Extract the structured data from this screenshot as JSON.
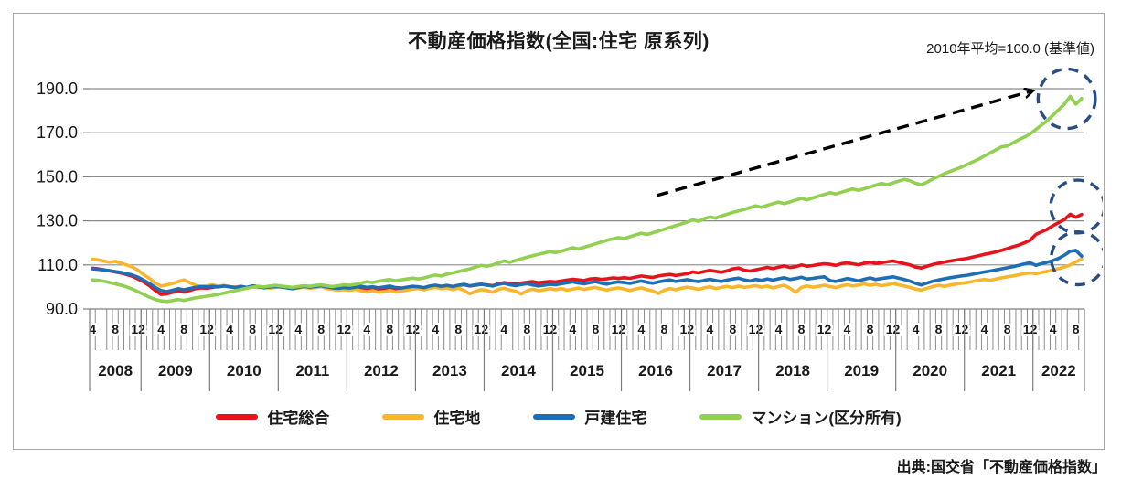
{
  "title": "不動産価格指数(全国:住宅 原系列)",
  "subtitle": "2010年平均=100.0 (基準値)",
  "source": "出典:国交省「不動産価格指数」",
  "colors": {
    "grid": "#8c8c8c",
    "axis": "#7f7f7f",
    "frame_border": "#a6a6a6",
    "annotation_navy": "#2a4d83",
    "arrow_black": "#000000",
    "text": "#1a1a1a"
  },
  "chart_data": {
    "type": "line",
    "title": "不動産価格指数(全国:住宅 原系列)",
    "subtitle": "2010年平均=100.0 (基準値)",
    "xlabel": "",
    "ylabel": "",
    "ylim": [
      90,
      190
    ],
    "yticks": [
      90,
      110,
      130,
      150,
      170,
      190
    ],
    "ytick_labels": [
      "90.0",
      "110.0",
      "130.0",
      "150.0",
      "170.0",
      "190.0"
    ],
    "grid": "horizontal",
    "legend_position": "bottom",
    "x_start": "2008-04",
    "x_end": "2022-09",
    "years": [
      {
        "label": "2008",
        "start_month": 4,
        "end_month": 12,
        "month_ticks": [
          4,
          8,
          12
        ]
      },
      {
        "label": "2009",
        "start_month": 1,
        "end_month": 12,
        "month_ticks": [
          4,
          8,
          12
        ]
      },
      {
        "label": "2010",
        "start_month": 1,
        "end_month": 12,
        "month_ticks": [
          4,
          8,
          12
        ]
      },
      {
        "label": "2011",
        "start_month": 1,
        "end_month": 12,
        "month_ticks": [
          4,
          8,
          12
        ]
      },
      {
        "label": "2012",
        "start_month": 1,
        "end_month": 12,
        "month_ticks": [
          4,
          8,
          12
        ]
      },
      {
        "label": "2013",
        "start_month": 1,
        "end_month": 12,
        "month_ticks": [
          4,
          8,
          12
        ]
      },
      {
        "label": "2014",
        "start_month": 1,
        "end_month": 12,
        "month_ticks": [
          4,
          8,
          12
        ]
      },
      {
        "label": "2015",
        "start_month": 1,
        "end_month": 12,
        "month_ticks": [
          4,
          8,
          12
        ]
      },
      {
        "label": "2016",
        "start_month": 1,
        "end_month": 12,
        "month_ticks": [
          4,
          8,
          12
        ]
      },
      {
        "label": "2017",
        "start_month": 1,
        "end_month": 12,
        "month_ticks": [
          4,
          8,
          12
        ]
      },
      {
        "label": "2018",
        "start_month": 1,
        "end_month": 12,
        "month_ticks": [
          4,
          8,
          12
        ]
      },
      {
        "label": "2019",
        "start_month": 1,
        "end_month": 12,
        "month_ticks": [
          4,
          8,
          12
        ]
      },
      {
        "label": "2020",
        "start_month": 1,
        "end_month": 12,
        "month_ticks": [
          4,
          8,
          12
        ]
      },
      {
        "label": "2021",
        "start_month": 1,
        "end_month": 12,
        "month_ticks": [
          4,
          8,
          12
        ]
      },
      {
        "label": "2022",
        "start_month": 1,
        "end_month": 9,
        "month_ticks": [
          4,
          8
        ]
      }
    ],
    "series": [
      {
        "name": "住宅総合",
        "color": "#e8121b",
        "values": [
          108.5,
          108.2,
          107.8,
          107.3,
          106.8,
          106.3,
          105.6,
          104.8,
          103.6,
          102.2,
          100.5,
          98.4,
          96.6,
          96.9,
          97.6,
          98.3,
          97.7,
          98.4,
          99.2,
          99.6,
          99.4,
          99.8,
          100.2,
          100.5,
          100.1,
          99.9,
          100.3,
          99.7,
          100.4,
          100.2,
          99.8,
          100.0,
          100.3,
          100.1,
          99.7,
          99.4,
          99.8,
          100.2,
          99.9,
          100.1,
          100.4,
          99.8,
          99.5,
          99.2,
          99.0,
          99.3,
          99.6,
          99.1,
          98.8,
          99.0,
          98.6,
          98.9,
          99.3,
          98.7,
          98.5,
          98.9,
          99.4,
          99.6,
          99.2,
          99.8,
          100.3,
          100.0,
          100.5,
          100.2,
          100.7,
          101.0,
          100.4,
          100.8,
          101.2,
          100.9,
          100.6,
          101.4,
          102.0,
          101.6,
          101.3,
          101.8,
          102.1,
          102.4,
          101.9,
          102.2,
          102.5,
          102.3,
          102.7,
          103.1,
          103.5,
          103.2,
          102.9,
          103.6,
          103.8,
          103.4,
          103.7,
          104.1,
          103.9,
          104.2,
          103.9,
          104.5,
          105.0,
          104.6,
          104.3,
          105.0,
          105.4,
          105.7,
          105.2,
          105.6,
          106.0,
          106.8,
          106.4,
          107.0,
          107.5,
          107.1,
          106.7,
          107.3,
          108.2,
          108.6,
          107.6,
          107.2,
          107.8,
          108.3,
          108.9,
          108.4,
          109.0,
          109.6,
          108.8,
          109.2,
          110.0,
          109.4,
          109.7,
          110.2,
          110.5,
          110.3,
          109.8,
          110.6,
          111.0,
          110.5,
          110.1,
          110.8,
          111.3,
          110.7,
          111.0,
          111.4,
          111.8,
          111.2,
          110.6,
          110.0,
          109.0,
          108.6,
          109.4,
          110.2,
          110.8,
          111.3,
          111.8,
          112.2,
          112.6,
          113.0,
          113.6,
          114.2,
          114.8,
          115.3,
          115.9,
          116.6,
          117.4,
          118.2,
          119.0,
          120.0,
          121.2,
          123.8,
          125.0,
          126.2,
          127.8,
          129.2,
          130.6,
          133.0,
          131.6,
          132.9
        ]
      },
      {
        "name": "住宅地",
        "color": "#f8b62d",
        "values": [
          112.6,
          112.3,
          111.8,
          111.2,
          111.6,
          110.8,
          110.0,
          109.0,
          107.6,
          105.5,
          103.8,
          101.8,
          100.4,
          100.9,
          101.6,
          102.4,
          103.2,
          102.0,
          100.8,
          100.2,
          100.6,
          100.9,
          100.4,
          100.7,
          100.2,
          99.8,
          100.3,
          99.6,
          100.1,
          99.7,
          100.0,
          99.5,
          99.8,
          100.2,
          99.6,
          99.1,
          99.5,
          99.9,
          99.4,
          99.7,
          100.1,
          99.3,
          98.9,
          98.5,
          98.8,
          98.5,
          98.9,
          98.2,
          97.8,
          98.3,
          97.6,
          97.9,
          98.4,
          97.7,
          98.1,
          98.6,
          99.0,
          99.3,
          98.7,
          99.4,
          99.8,
          99.2,
          99.6,
          98.8,
          99.5,
          98.4,
          96.9,
          98.0,
          98.8,
          98.4,
          97.6,
          98.9,
          99.4,
          98.6,
          98.1,
          96.8,
          98.2,
          99.0,
          98.3,
          98.7,
          99.2,
          98.8,
          99.3,
          98.5,
          99.0,
          99.5,
          98.9,
          99.4,
          99.8,
          99.1,
          98.6,
          99.2,
          99.6,
          99.0,
          98.4,
          99.1,
          99.6,
          98.8,
          98.2,
          97.0,
          98.5,
          99.3,
          98.7,
          99.4,
          99.9,
          99.5,
          98.9,
          99.6,
          100.1,
          99.3,
          99.8,
          100.3,
          99.7,
          100.4,
          99.8,
          100.2,
          100.6,
          99.9,
          100.4,
          99.6,
          100.2,
          100.8,
          99.4,
          97.6,
          99.8,
          100.5,
          99.9,
          100.3,
          100.8,
          100.2,
          99.7,
          100.5,
          101.0,
          100.4,
          100.9,
          101.4,
          100.8,
          101.2,
          100.6,
          101.0,
          101.5,
          101.0,
          100.4,
          99.8,
          99.0,
          98.6,
          99.4,
          100.2,
          100.8,
          100.3,
          100.9,
          101.3,
          101.7,
          102.0,
          102.5,
          103.0,
          103.4,
          103.0,
          103.6,
          104.1,
          104.6,
          105.0,
          105.5,
          106.0,
          106.4,
          106.0,
          106.6,
          107.1,
          107.8,
          108.3,
          109.0,
          110.0,
          111.4,
          112.6
        ]
      },
      {
        "name": "戸建住宅",
        "color": "#1e6eb5",
        "values": [
          108.2,
          108.0,
          107.7,
          107.4,
          107.0,
          106.6,
          106.0,
          105.4,
          104.4,
          103.0,
          101.5,
          99.8,
          98.4,
          97.9,
          98.5,
          99.2,
          98.7,
          99.3,
          99.8,
          100.2,
          100.0,
          100.3,
          100.0,
          100.4,
          100.1,
          99.7,
          100.2,
          99.8,
          100.5,
          100.1,
          99.6,
          99.9,
          100.2,
          100.0,
          99.6,
          99.3,
          99.8,
          100.3,
          99.9,
          100.2,
          100.6,
          100.0,
          99.6,
          99.4,
          99.7,
          99.5,
          99.9,
          100.3,
          99.8,
          100.1,
          99.6,
          100.0,
          100.4,
          99.7,
          99.5,
          99.9,
          100.3,
          100.1,
          99.7,
          100.4,
          100.8,
          100.3,
          100.7,
          100.2,
          100.8,
          101.2,
          100.5,
          100.9,
          101.3,
          100.8,
          100.4,
          101.2,
          101.6,
          101.0,
          100.6,
          101.1,
          101.5,
          100.9,
          100.4,
          100.8,
          101.2,
          101.0,
          101.5,
          101.9,
          102.3,
          101.8,
          101.4,
          102.0,
          102.4,
          101.7,
          101.3,
          101.9,
          102.3,
          102.0,
          101.6,
          102.2,
          102.7,
          102.1,
          101.7,
          102.3,
          102.8,
          103.2,
          102.5,
          102.9,
          103.3,
          102.8,
          102.4,
          103.0,
          103.5,
          102.9,
          102.5,
          103.1,
          103.6,
          104.0,
          103.2,
          102.7,
          103.4,
          103.0,
          103.6,
          103.1,
          103.7,
          104.2,
          103.4,
          103.8,
          104.4,
          103.6,
          103.9,
          104.3,
          104.6,
          102.9,
          102.5,
          103.2,
          103.8,
          103.3,
          102.8,
          103.5,
          104.1,
          103.4,
          103.8,
          104.2,
          104.6,
          104.0,
          103.4,
          102.6,
          101.6,
          100.9,
          101.8,
          102.6,
          103.2,
          103.7,
          104.2,
          104.6,
          105.0,
          105.3,
          105.8,
          106.3,
          106.8,
          107.2,
          107.7,
          108.2,
          108.7,
          109.2,
          109.8,
          110.4,
          111.0,
          109.8,
          110.6,
          111.2,
          112.0,
          113.0,
          114.4,
          116.2,
          116.6,
          114.0
        ]
      },
      {
        "name": "マンション(区分所有)",
        "color": "#92d050",
        "values": [
          103.2,
          103.0,
          102.6,
          102.0,
          101.4,
          100.8,
          100.0,
          99.0,
          97.8,
          96.5,
          95.3,
          94.3,
          93.7,
          93.4,
          93.8,
          94.3,
          93.9,
          94.5,
          95.0,
          95.4,
          95.8,
          96.2,
          96.6,
          97.2,
          97.8,
          98.3,
          98.9,
          99.4,
          99.9,
          100.3,
          100.0,
          100.4,
          100.7,
          100.4,
          100.1,
          99.8,
          100.2,
          100.6,
          100.3,
          100.7,
          101.0,
          100.5,
          100.2,
          100.6,
          101.0,
          100.8,
          101.2,
          101.8,
          102.4,
          102.0,
          102.6,
          103.0,
          103.4,
          102.8,
          103.2,
          103.6,
          104.0,
          103.6,
          104.1,
          104.8,
          105.4,
          105.0,
          105.8,
          106.4,
          107.0,
          107.6,
          108.2,
          109.0,
          109.8,
          109.4,
          110.0,
          111.0,
          111.8,
          111.2,
          112.0,
          112.8,
          113.5,
          114.2,
          114.8,
          115.4,
          116.0,
          115.6,
          116.2,
          117.0,
          117.8,
          117.2,
          118.0,
          118.8,
          119.6,
          120.4,
          121.2,
          121.8,
          122.4,
          122.0,
          122.8,
          123.6,
          124.4,
          123.8,
          124.6,
          125.4,
          126.2,
          127.0,
          127.8,
          128.6,
          129.4,
          130.5,
          129.8,
          131.0,
          131.8,
          131.2,
          132.2,
          133.0,
          133.8,
          134.5,
          135.2,
          136.0,
          136.8,
          136.2,
          137.0,
          137.8,
          138.5,
          137.8,
          138.6,
          139.4,
          140.2,
          139.5,
          140.4,
          141.2,
          142.0,
          142.8,
          142.2,
          143.0,
          143.8,
          144.5,
          143.8,
          144.6,
          145.4,
          146.2,
          147.0,
          146.4,
          147.2,
          148.0,
          148.8,
          148.2,
          147.0,
          146.4,
          147.6,
          149.0,
          150.2,
          151.4,
          152.4,
          153.4,
          154.4,
          155.6,
          156.8,
          158.0,
          159.4,
          160.8,
          162.2,
          163.6,
          164.0,
          165.4,
          166.8,
          168.0,
          169.4,
          171.5,
          173.5,
          175.5,
          178.0,
          180.5,
          183.0,
          186.5,
          183.0,
          185.5
        ]
      }
    ],
    "annotations": {
      "arrow": {
        "from": {
          "month_index": 98.7,
          "value": 141.5
        },
        "to": {
          "month_index": 164.4,
          "value": 189.0
        }
      },
      "ellipses": [
        {
          "month_index": 170.4,
          "value": 185.4,
          "rx_months": 5.0,
          "ry_value": 13.5
        },
        {
          "month_index": 172.3,
          "value": 136.5,
          "rx_months": 4.7,
          "ry_value": 12.0
        },
        {
          "month_index": 172.4,
          "value": 113.0,
          "rx_months": 4.7,
          "ry_value": 12.0
        }
      ]
    }
  },
  "legend": {
    "items": [
      "住宅総合",
      "住宅地",
      "戸建住宅",
      "マンション(区分所有)"
    ]
  }
}
